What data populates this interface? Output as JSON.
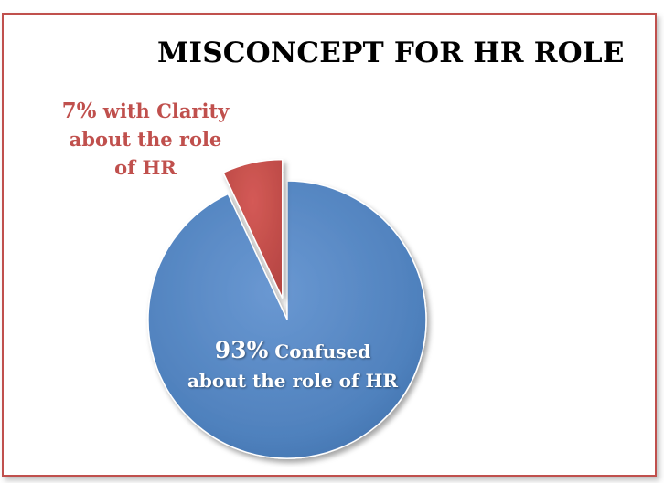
{
  "chart_data": {
    "type": "pie",
    "title": "MISCONCEPT FOR HR ROLE",
    "series": [
      {
        "name": "",
        "values": [
          93,
          7
        ],
        "labels": [
          "Confused about the role of HR",
          "with Clarity about the role of HR"
        ]
      }
    ],
    "slices": [
      {
        "value": 93,
        "percent_text": "93%",
        "label_rest": "Confused about the role of HR",
        "color": "#4f81bd",
        "exploded": false
      },
      {
        "value": 7,
        "percent_text": "7%",
        "label_rest": "with Clarity about the role of HR",
        "color": "#c0504d",
        "exploded": true
      }
    ],
    "legend": "none",
    "grid": false
  },
  "colors": {
    "frame_border": "#c0504d",
    "blue_slice": "#4f81bd",
    "red_slice": "#c0504d"
  }
}
